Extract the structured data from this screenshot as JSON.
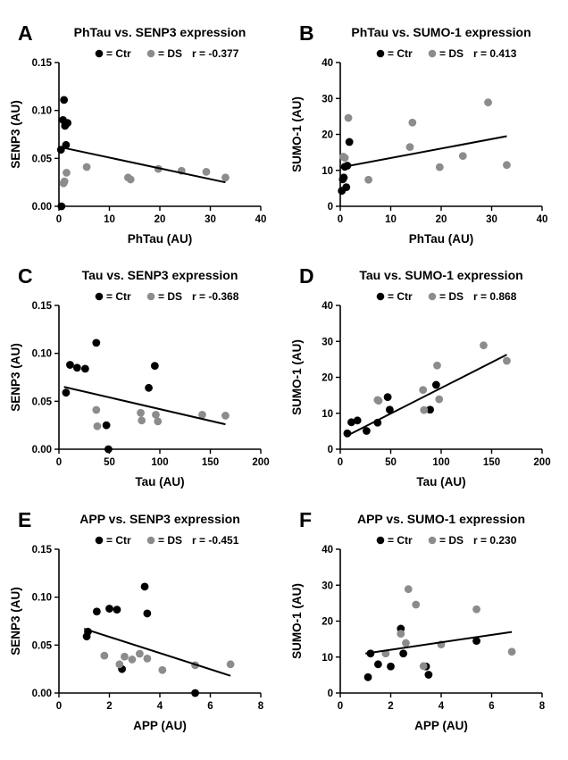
{
  "colors": {
    "ctr": "#000000",
    "ds": "#8c8c8c",
    "axis": "#000000",
    "fit": "#000000"
  },
  "legend": {
    "ctr_label": "= Ctr",
    "ds_label": "= DS"
  },
  "chart_data": [
    {
      "panel": "A",
      "type": "scatter",
      "title": "PhTau vs. SENP3 expression",
      "r_label": "r = -0.377",
      "xlabel": "PhTau (AU)",
      "ylabel": "SENP3 (AU)",
      "xlim": [
        0,
        40
      ],
      "ylim": [
        0,
        0.15
      ],
      "xticks": [
        0,
        10,
        20,
        30,
        40
      ],
      "yticks": [
        0.0,
        0.05,
        0.1,
        0.15
      ],
      "xtick_labels": [
        "0",
        "10",
        "20",
        "30",
        "40"
      ],
      "ytick_labels": [
        "0.00",
        "0.05",
        "0.10",
        "0.15"
      ],
      "legend": "top-center",
      "grid": false,
      "series": [
        {
          "name": "Ctr",
          "points": [
            [
              0.4,
              0.059
            ],
            [
              0.5,
              0.0
            ],
            [
              0.8,
              0.09
            ],
            [
              1.0,
              0.111
            ],
            [
              1.2,
              0.084
            ],
            [
              1.4,
              0.064
            ],
            [
              1.7,
              0.087
            ]
          ]
        },
        {
          "name": "DS",
          "points": [
            [
              0.9,
              0.024
            ],
            [
              1.1,
              0.026
            ],
            [
              1.5,
              0.035
            ],
            [
              5.5,
              0.041
            ],
            [
              13.7,
              0.03
            ],
            [
              14.2,
              0.028
            ],
            [
              19.7,
              0.039
            ],
            [
              24.3,
              0.037
            ],
            [
              29.2,
              0.036
            ],
            [
              33.0,
              0.03
            ]
          ]
        }
      ],
      "fit": [
        [
          0.0,
          0.062
        ],
        [
          33.0,
          0.025
        ]
      ]
    },
    {
      "panel": "B",
      "type": "scatter",
      "title": "PhTau vs. SUMO-1 expression",
      "r_label": "r = 0.413",
      "xlabel": "PhTau (AU)",
      "ylabel": "SUMO-1 (AU)",
      "xlim": [
        0,
        40
      ],
      "ylim": [
        0,
        40
      ],
      "xticks": [
        0,
        10,
        20,
        30,
        40
      ],
      "yticks": [
        0,
        10,
        20,
        30,
        40
      ],
      "xtick_labels": [
        "0",
        "10",
        "20",
        "30",
        "40"
      ],
      "ytick_labels": [
        "0",
        "10",
        "20",
        "30",
        "40"
      ],
      "legend": "top-center",
      "grid": false,
      "series": [
        {
          "name": "Ctr",
          "points": [
            [
              0.3,
              4.3
            ],
            [
              0.5,
              7.5
            ],
            [
              0.7,
              8.0
            ],
            [
              0.9,
              11.0
            ],
            [
              1.2,
              5.3
            ],
            [
              1.4,
              11.3
            ],
            [
              1.8,
              17.9
            ]
          ]
        },
        {
          "name": "DS",
          "points": [
            [
              0.6,
              13.8
            ],
            [
              0.9,
              13.5
            ],
            [
              1.6,
              24.6
            ],
            [
              5.6,
              7.4
            ],
            [
              13.8,
              16.5
            ],
            [
              14.3,
              23.3
            ],
            [
              19.7,
              10.9
            ],
            [
              24.3,
              14.0
            ],
            [
              29.3,
              28.9
            ],
            [
              33.0,
              11.5
            ]
          ]
        }
      ],
      "fit": [
        [
          0.0,
          10.8
        ],
        [
          33.0,
          19.5
        ]
      ]
    },
    {
      "panel": "C",
      "type": "scatter",
      "title": "Tau vs. SENP3 expression",
      "r_label": "r = -0.368",
      "xlabel": "Tau (AU)",
      "ylabel": "SENP3 (AU)",
      "xlim": [
        0,
        200
      ],
      "ylim": [
        0,
        0.15
      ],
      "xticks": [
        0,
        50,
        100,
        150,
        200
      ],
      "yticks": [
        0.0,
        0.05,
        0.1,
        0.15
      ],
      "xtick_labels": [
        "0",
        "50",
        "100",
        "150",
        "200"
      ],
      "ytick_labels": [
        "0.00",
        "0.05",
        "0.10",
        "0.15"
      ],
      "legend": "top-center",
      "grid": false,
      "series": [
        {
          "name": "Ctr",
          "points": [
            [
              7,
              0.059
            ],
            [
              11,
              0.088
            ],
            [
              18,
              0.085
            ],
            [
              26,
              0.084
            ],
            [
              37,
              0.111
            ],
            [
              47,
              0.025
            ],
            [
              49,
              0.0
            ],
            [
              89,
              0.064
            ],
            [
              95,
              0.087
            ]
          ]
        },
        {
          "name": "DS",
          "points": [
            [
              37,
              0.041
            ],
            [
              38,
              0.024
            ],
            [
              81,
              0.038
            ],
            [
              82,
              0.03
            ],
            [
              96,
              0.036
            ],
            [
              98,
              0.029
            ],
            [
              142,
              0.036
            ],
            [
              165,
              0.035
            ]
          ]
        }
      ],
      "fit": [
        [
          5,
          0.065
        ],
        [
          165,
          0.026
        ]
      ]
    },
    {
      "panel": "D",
      "type": "scatter",
      "title": "Tau vs. SUMO-1 expression",
      "r_label": "r = 0.868",
      "xlabel": "Tau (AU)",
      "ylabel": "SUMO-1 (AU)",
      "xlim": [
        0,
        200
      ],
      "ylim": [
        0,
        40
      ],
      "xticks": [
        0,
        50,
        100,
        150,
        200
      ],
      "yticks": [
        0,
        10,
        20,
        30,
        40
      ],
      "xtick_labels": [
        "0",
        "50",
        "100",
        "150",
        "200"
      ],
      "ytick_labels": [
        "0",
        "10",
        "20",
        "30",
        "40"
      ],
      "legend": "top-center",
      "grid": false,
      "series": [
        {
          "name": "Ctr",
          "points": [
            [
              7,
              4.4
            ],
            [
              11,
              7.5
            ],
            [
              17,
              8.0
            ],
            [
              26,
              5.1
            ],
            [
              37,
              7.4
            ],
            [
              47,
              14.5
            ],
            [
              49,
              11.0
            ],
            [
              89,
              11.0
            ],
            [
              95,
              17.9
            ]
          ]
        },
        {
          "name": "DS",
          "points": [
            [
              37,
              13.7
            ],
            [
              38,
              13.5
            ],
            [
              82,
              16.5
            ],
            [
              83,
              10.9
            ],
            [
              96,
              23.3
            ],
            [
              98,
              13.9
            ],
            [
              142,
              28.9
            ],
            [
              165,
              24.6
            ]
          ]
        }
      ],
      "fit": [
        [
          5,
          3.5
        ],
        [
          165,
          26.3
        ]
      ]
    },
    {
      "panel": "E",
      "type": "scatter",
      "title": "APP vs. SENP3 expression",
      "r_label": "r = -0.451",
      "xlabel": "APP (AU)",
      "ylabel": "SENP3 (AU)",
      "xlim": [
        0,
        8
      ],
      "ylim": [
        0,
        0.15
      ],
      "xticks": [
        0,
        2,
        4,
        6,
        8
      ],
      "yticks": [
        0.0,
        0.05,
        0.1,
        0.15
      ],
      "xtick_labels": [
        "0",
        "2",
        "4",
        "6",
        "8"
      ],
      "ytick_labels": [
        "0.00",
        "0.05",
        "0.10",
        "0.15"
      ],
      "legend": "top-center",
      "grid": false,
      "series": [
        {
          "name": "Ctr",
          "points": [
            [
              1.1,
              0.059
            ],
            [
              1.15,
              0.064
            ],
            [
              1.5,
              0.085
            ],
            [
              2.0,
              0.088
            ],
            [
              2.3,
              0.087
            ],
            [
              2.5,
              0.025
            ],
            [
              3.4,
              0.111
            ],
            [
              3.5,
              0.083
            ],
            [
              5.4,
              0.0
            ]
          ]
        },
        {
          "name": "DS",
          "points": [
            [
              1.8,
              0.039
            ],
            [
              2.4,
              0.03
            ],
            [
              2.6,
              0.038
            ],
            [
              2.9,
              0.035
            ],
            [
              3.2,
              0.041
            ],
            [
              3.5,
              0.036
            ],
            [
              4.1,
              0.024
            ],
            [
              5.4,
              0.029
            ],
            [
              6.8,
              0.03
            ]
          ]
        }
      ],
      "fit": [
        [
          1.0,
          0.067
        ],
        [
          6.8,
          0.018
        ]
      ]
    },
    {
      "panel": "F",
      "type": "scatter",
      "title": "APP vs. SUMO-1 expression",
      "r_label": "r = 0.230",
      "xlabel": "APP (AU)",
      "ylabel": "SUMO-1 (AU)",
      "xlim": [
        0,
        8
      ],
      "ylim": [
        0,
        40
      ],
      "xticks": [
        0,
        2,
        4,
        6,
        8
      ],
      "yticks": [
        0,
        10,
        20,
        30,
        40
      ],
      "xtick_labels": [
        "0",
        "2",
        "4",
        "6",
        "8"
      ],
      "ytick_labels": [
        "0",
        "10",
        "20",
        "30",
        "40"
      ],
      "legend": "top-center",
      "grid": false,
      "series": [
        {
          "name": "Ctr",
          "points": [
            [
              1.1,
              4.4
            ],
            [
              1.2,
              11.0
            ],
            [
              1.5,
              8.0
            ],
            [
              2.0,
              7.4
            ],
            [
              2.4,
              17.9
            ],
            [
              2.5,
              11.0
            ],
            [
              3.4,
              7.4
            ],
            [
              3.5,
              5.1
            ],
            [
              5.4,
              14.5
            ]
          ]
        },
        {
          "name": "DS",
          "points": [
            [
              1.8,
              11.0
            ],
            [
              2.4,
              16.5
            ],
            [
              2.6,
              13.9
            ],
            [
              2.7,
              28.9
            ],
            [
              3.0,
              24.6
            ],
            [
              3.3,
              7.5
            ],
            [
              4.0,
              13.5
            ],
            [
              5.4,
              23.3
            ],
            [
              6.8,
              11.5
            ]
          ]
        }
      ],
      "fit": [
        [
          1.0,
          11.0
        ],
        [
          6.8,
          17.0
        ]
      ]
    }
  ]
}
